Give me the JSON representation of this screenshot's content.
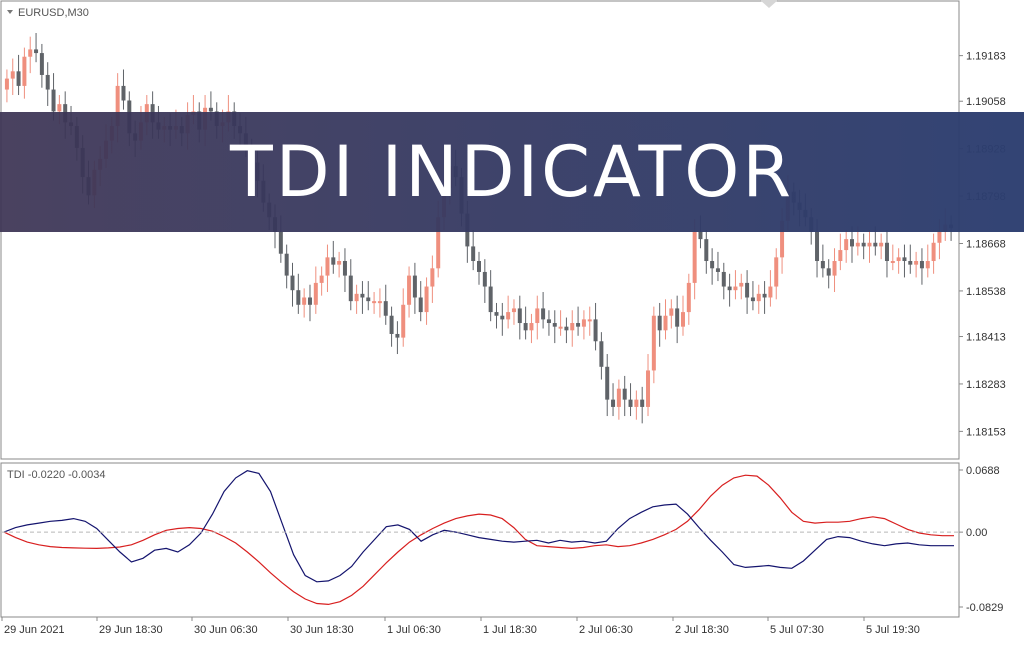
{
  "symbol_label": "EURUSD,M30",
  "indicator_label": "TDI -0.0220 -0.0034",
  "banner_title": "TDI INDICATOR",
  "colors": {
    "bull": "#ef8f7e",
    "bear": "#5f6368",
    "signal_line": "#d81f1f",
    "rsi_line": "#14146e",
    "banner": "#2d3e70",
    "grid_zero": "#b8b8b8"
  },
  "chart_data": [
    {
      "type": "candlestick",
      "title": "EURUSD,M30",
      "y_ticks": [
        "1.19183",
        "1.19058",
        "1.18928",
        "1.18798",
        "1.18668",
        "1.18538",
        "1.18413",
        "1.18283",
        "1.18153"
      ],
      "ylim": [
        1.1808,
        1.1933
      ],
      "x_tick_labels": [
        "29 Jun 2021",
        "29 Jun 18:30",
        "30 Jun 06:30",
        "30 Jun 18:30",
        "1 Jul 06:30",
        "1 Jul 18:30",
        "2 Jul 06:30",
        "2 Jul 18:30",
        "5 Jul 07:30",
        "5 Jul 19:30"
      ],
      "closes": [
        1.1912,
        1.1914,
        1.191,
        1.1918,
        1.192,
        1.1919,
        1.1913,
        1.1909,
        1.1903,
        1.1905,
        1.19,
        1.1899,
        1.1893,
        1.1885,
        1.188,
        1.1887,
        1.189,
        1.1895,
        1.1899,
        1.191,
        1.1906,
        1.1897,
        1.1895,
        1.19,
        1.1905,
        1.19,
        1.1898,
        1.1899,
        1.1898,
        1.1899,
        1.1897,
        1.1902,
        1.1903,
        1.1898,
        1.1904,
        1.1903,
        1.1899,
        1.19,
        1.1903,
        1.1899,
        1.1897,
        1.1893,
        1.1889,
        1.1884,
        1.1878,
        1.1874,
        1.187,
        1.1864,
        1.1858,
        1.1854,
        1.185,
        1.1852,
        1.185,
        1.1856,
        1.1858,
        1.1863,
        1.1861,
        1.1862,
        1.1858,
        1.1851,
        1.1853,
        1.1852,
        1.1851,
        1.1851,
        1.1851,
        1.1847,
        1.1842,
        1.1841,
        1.185,
        1.1858,
        1.1852,
        1.1848,
        1.1855,
        1.186,
        1.1874,
        1.1882,
        1.1888,
        1.1885,
        1.1875,
        1.1866,
        1.1862,
        1.1859,
        1.1855,
        1.1848,
        1.1847,
        1.1846,
        1.1848,
        1.1849,
        1.1845,
        1.1843,
        1.1845,
        1.1849,
        1.1846,
        1.1845,
        1.1844,
        1.1844,
        1.1843,
        1.1845,
        1.1844,
        1.1846,
        1.1846,
        1.184,
        1.1833,
        1.1824,
        1.1822,
        1.1827,
        1.1824,
        1.1822,
        1.1824,
        1.1822,
        1.1832,
        1.1847,
        1.1843,
        1.1847,
        1.1849,
        1.1844,
        1.1848,
        1.1856,
        1.187,
        1.1868,
        1.1862,
        1.186,
        1.1859,
        1.1855,
        1.1854,
        1.1855,
        1.1856,
        1.1852,
        1.1851,
        1.1853,
        1.1852,
        1.1855,
        1.1863,
        1.1873,
        1.1881,
        1.1878,
        1.1876,
        1.1874,
        1.187,
        1.1862,
        1.186,
        1.1858,
        1.1862,
        1.1865,
        1.1868,
        1.1866,
        1.1867,
        1.1866,
        1.1867,
        1.1866,
        1.1867,
        1.1862,
        1.1862,
        1.1863,
        1.1862,
        1.1861,
        1.1862,
        1.186,
        1.1862,
        1.1867,
        1.187,
        1.1872,
        1.1871
      ]
    },
    {
      "type": "line",
      "title": "TDI -0.0220 -0.0034",
      "y_ticks": [
        "0.0688",
        "0.00",
        "-0.0829"
      ],
      "ylim": [
        -0.0829,
        0.0688
      ],
      "series": [
        {
          "values": [
            0.0,
            -0.006,
            -0.011,
            -0.014,
            -0.016,
            -0.017,
            -0.0175,
            -0.0178,
            -0.018,
            -0.0175,
            -0.0165,
            -0.014,
            -0.009,
            -0.003,
            0.002,
            0.004,
            0.005,
            0.004,
            0.001,
            -0.005,
            -0.012,
            -0.022,
            -0.033,
            -0.045,
            -0.056,
            -0.066,
            -0.074,
            -0.079,
            -0.08,
            -0.077,
            -0.07,
            -0.06,
            -0.047,
            -0.034,
            -0.022,
            -0.011,
            -0.003,
            0.004,
            0.01,
            0.015,
            0.018,
            0.02,
            0.019,
            0.015,
            0.005,
            -0.008,
            -0.015,
            -0.016,
            -0.017,
            -0.018,
            -0.017,
            -0.015,
            -0.014,
            -0.016,
            -0.015,
            -0.012,
            -0.008,
            -0.003,
            0.003,
            0.012,
            0.025,
            0.04,
            0.052,
            0.06,
            0.063,
            0.062,
            0.052,
            0.038,
            0.022,
            0.012,
            0.01,
            0.011,
            0.011,
            0.012,
            0.015,
            0.017,
            0.015,
            0.009,
            0.003,
            -0.001,
            -0.003,
            -0.004,
            -0.004
          ]
        },
        {
          "values": [
            0.0,
            0.005,
            0.008,
            0.01,
            0.012,
            0.013,
            0.015,
            0.012,
            0.004,
            -0.009,
            -0.022,
            -0.033,
            -0.029,
            -0.02,
            -0.018,
            -0.022,
            -0.014,
            -0.001,
            0.02,
            0.045,
            0.06,
            0.068,
            0.065,
            0.045,
            0.01,
            -0.025,
            -0.048,
            -0.055,
            -0.054,
            -0.048,
            -0.038,
            -0.022,
            -0.008,
            0.006,
            0.008,
            0.003,
            -0.01,
            -0.003,
            0.002,
            0.0,
            -0.003,
            -0.006,
            -0.008,
            -0.01,
            -0.011,
            -0.01,
            -0.009,
            -0.012,
            -0.009,
            -0.011,
            -0.01,
            -0.012,
            -0.01,
            0.004,
            0.015,
            0.022,
            0.028,
            0.03,
            0.031,
            0.02,
            0.005,
            -0.009,
            -0.022,
            -0.036,
            -0.039,
            -0.038,
            -0.037,
            -0.039,
            -0.04,
            -0.032,
            -0.02,
            -0.008,
            -0.005,
            -0.006,
            -0.01,
            -0.013,
            -0.015,
            -0.013,
            -0.012,
            -0.014,
            -0.015,
            -0.015,
            -0.015
          ]
        }
      ],
      "x_tick_labels": [
        "29 Jun 2021",
        "29 Jun 18:30",
        "30 Jun 06:30",
        "30 Jun 18:30",
        "1 Jul 06:30",
        "1 Jul 18:30",
        "2 Jul 06:30",
        "2 Jul 18:30",
        "5 Jul 07:30",
        "5 Jul 19:30"
      ]
    }
  ]
}
